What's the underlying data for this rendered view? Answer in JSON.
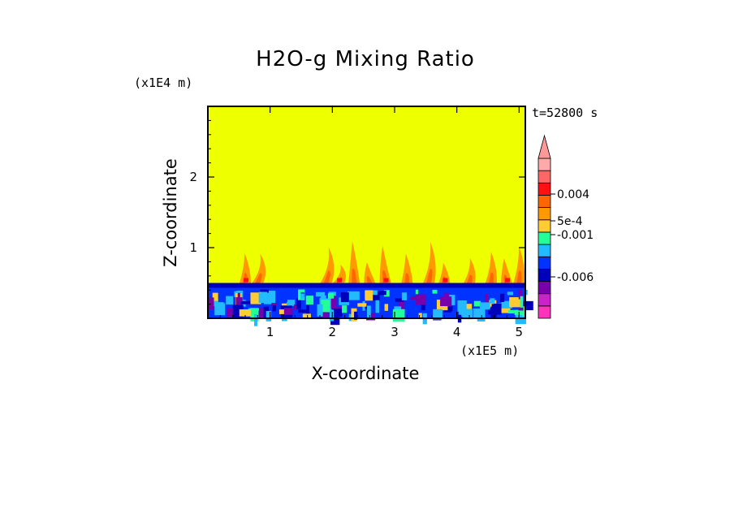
{
  "chart_data": {
    "type": "heatmap",
    "title": "H2O-g Mixing Ratio",
    "xlabel": "X-coordinate",
    "ylabel": "Z-coordinate",
    "x_unit": "(x1E5 m)",
    "y_unit": "(x1E4 m)",
    "time_label": "t=52800 s",
    "xlim": [
      0,
      5.1
    ],
    "ylim": [
      0,
      3.0
    ],
    "x_ticks": [
      1,
      2,
      3,
      4,
      5
    ],
    "y_ticks": [
      1,
      2
    ],
    "colorbar": {
      "labeled_ticks": [
        "0.004",
        "5e-4",
        "-0.001",
        "-0.006"
      ],
      "colors": [
        "#ff33bb",
        "#cc22cc",
        "#7700aa",
        "#0000bb",
        "#0033ff",
        "#22bbff",
        "#22ff99",
        "#ffcc33",
        "#ff9900",
        "#ff6600",
        "#ff1111",
        "#ff6666",
        "#ffaaaa"
      ]
    },
    "background_value_color": "#eeff00",
    "layer_top_z": 0.5
  }
}
